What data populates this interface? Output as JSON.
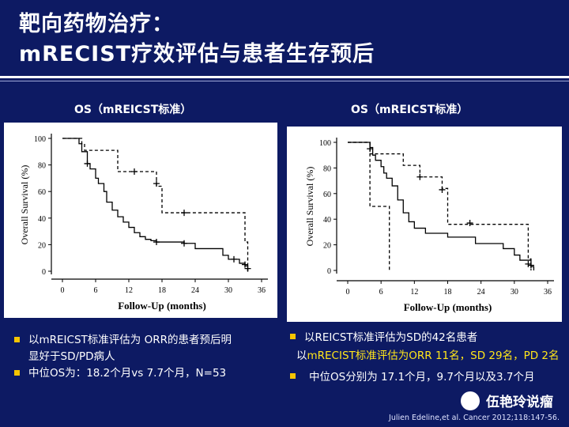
{
  "slide": {
    "title_line1": "靶向药物治疗：",
    "title_line2": "mRECIST疗效评估与患者生存预后",
    "citation": "Julien Edeline,et al. Cancer 2012;118:147-56.",
    "watermark": "伍艳玲说瘤"
  },
  "left_bullets": {
    "b1_line1": "以mREICST标准评估为 ORR的患者预后明",
    "b1_line2": "显好于SD/PD病人",
    "b2": "中位OS为：18.2个月vs 7.7个月，N=53"
  },
  "right_bullets": {
    "b1": "以REICST标准评估为SD的42名患者",
    "b2_prefix": "以",
    "b2_highlight": "mRECIST标准评估为ORR 11名，SD 29名，PD 2名",
    "b3": "中位OS分别为 17.1个月，9.7个月以及3.7个月"
  },
  "colors": {
    "background": "#0d1a63",
    "bullet": "#f5c400",
    "highlight": "#ffe51a"
  },
  "chart_data": [
    {
      "type": "line",
      "title": "OS（mREICST标准）",
      "xlabel": "Follow-Up (months)",
      "ylabel": "Overall Survival (%)",
      "xlim": [
        0,
        36
      ],
      "ylim": [
        0,
        100
      ],
      "xticks": [
        0,
        6,
        12,
        18,
        24,
        30,
        36
      ],
      "yticks": [
        0,
        20,
        40,
        60,
        80,
        100
      ],
      "series": [
        {
          "style": "dashed",
          "x": [
            0,
            2.5,
            3.5,
            4,
            4.5,
            9,
            10,
            13,
            17,
            18,
            32.5,
            33,
            33.5
          ],
          "y": [
            100,
            100,
            96,
            91,
            91,
            91,
            75,
            75,
            64,
            44,
            44,
            22,
            0
          ],
          "censor": [
            [
              13,
              75
            ],
            [
              17,
              66
            ],
            [
              22,
              44
            ],
            [
              33.5,
              2
            ]
          ]
        },
        {
          "style": "solid",
          "x": [
            0,
            2.5,
            3,
            3.5,
            4.5,
            5,
            6,
            6.5,
            7.5,
            8,
            9,
            10,
            11,
            12,
            13,
            14,
            15,
            16,
            17,
            22,
            23,
            24,
            27,
            29,
            30,
            31,
            32,
            33,
            33.5
          ],
          "y": [
            100,
            100,
            96,
            90,
            81,
            77,
            70,
            66,
            60,
            52,
            46,
            41,
            37,
            33,
            29,
            26,
            24,
            23,
            22,
            21,
            21,
            17,
            17,
            12,
            9,
            9,
            6,
            4,
            0
          ],
          "censor": [
            [
              4.5,
              81
            ],
            [
              17,
              22
            ],
            [
              22,
              21
            ],
            [
              31,
              9
            ],
            [
              33,
              5
            ]
          ]
        }
      ]
    },
    {
      "type": "line",
      "title": "OS（mREICST标准）",
      "xlabel": "Follow-Up (months)",
      "ylabel": "Overall Survival (%)",
      "xlim": [
        0,
        36
      ],
      "ylim": [
        0,
        100
      ],
      "xticks": [
        0,
        6,
        12,
        18,
        24,
        30,
        36
      ],
      "yticks": [
        0,
        20,
        40,
        60,
        80,
        100
      ],
      "series": [
        {
          "style": "dashed",
          "x": [
            0,
            3,
            4,
            5,
            9,
            10,
            13,
            15,
            17,
            18,
            32,
            32.5,
            33
          ],
          "y": [
            100,
            100,
            91,
            91,
            91,
            82,
            73,
            73,
            64,
            36,
            36,
            9,
            0
          ],
          "censor": [
            [
              13,
              73
            ],
            [
              17,
              63
            ],
            [
              22,
              37
            ],
            [
              32.5,
              5
            ]
          ]
        },
        {
          "style": "dashed",
          "x": [
            0,
            3.5,
            4,
            7,
            7.5,
            7.6
          ],
          "y": [
            100,
            100,
            50,
            50,
            0,
            0
          ],
          "censor": []
        },
        {
          "style": "solid",
          "x": [
            0,
            3,
            4,
            4.5,
            5,
            6,
            6.5,
            7,
            8,
            9,
            10,
            11,
            12,
            14,
            15,
            17,
            18,
            22,
            23,
            26,
            28,
            30,
            31,
            32,
            33,
            33.5
          ],
          "y": [
            100,
            100,
            96,
            90,
            86,
            81,
            76,
            72,
            66,
            55,
            45,
            38,
            33,
            29,
            29,
            29,
            26,
            26,
            21,
            21,
            17,
            12,
            8,
            8,
            3,
            0
          ],
          "censor": [
            [
              4,
              95
            ],
            [
              33,
              4
            ]
          ]
        }
      ]
    }
  ]
}
